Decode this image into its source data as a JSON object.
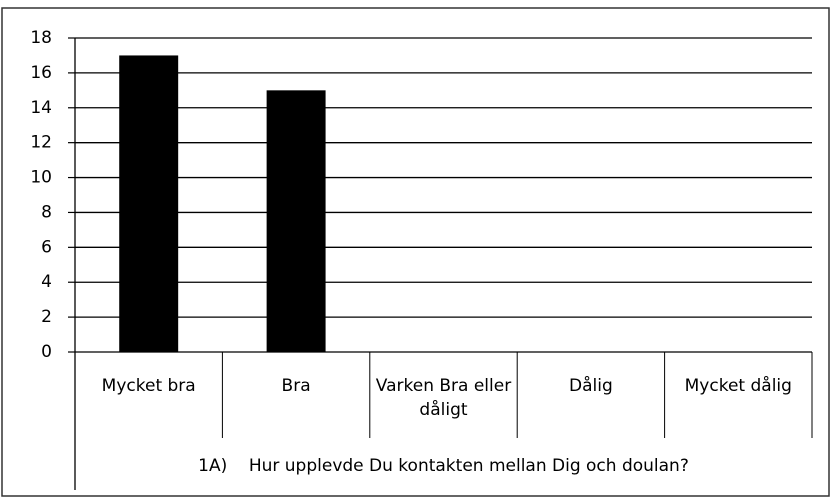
{
  "chart_data": {
    "type": "bar",
    "xlabel": "1A)    Hur upplevde Du kontakten mellan Dig och doulan?",
    "categories": [
      "Mycket bra",
      "Bra",
      "Varken Bra eller dåligt",
      "Dålig",
      "Mycket dålig"
    ],
    "values": [
      17,
      15,
      0,
      0,
      0
    ],
    "color": "#000000",
    "ylim": [
      0,
      18
    ],
    "yticks": [
      0,
      2,
      4,
      6,
      8,
      10,
      12,
      14,
      16,
      18
    ],
    "grid": true
  }
}
